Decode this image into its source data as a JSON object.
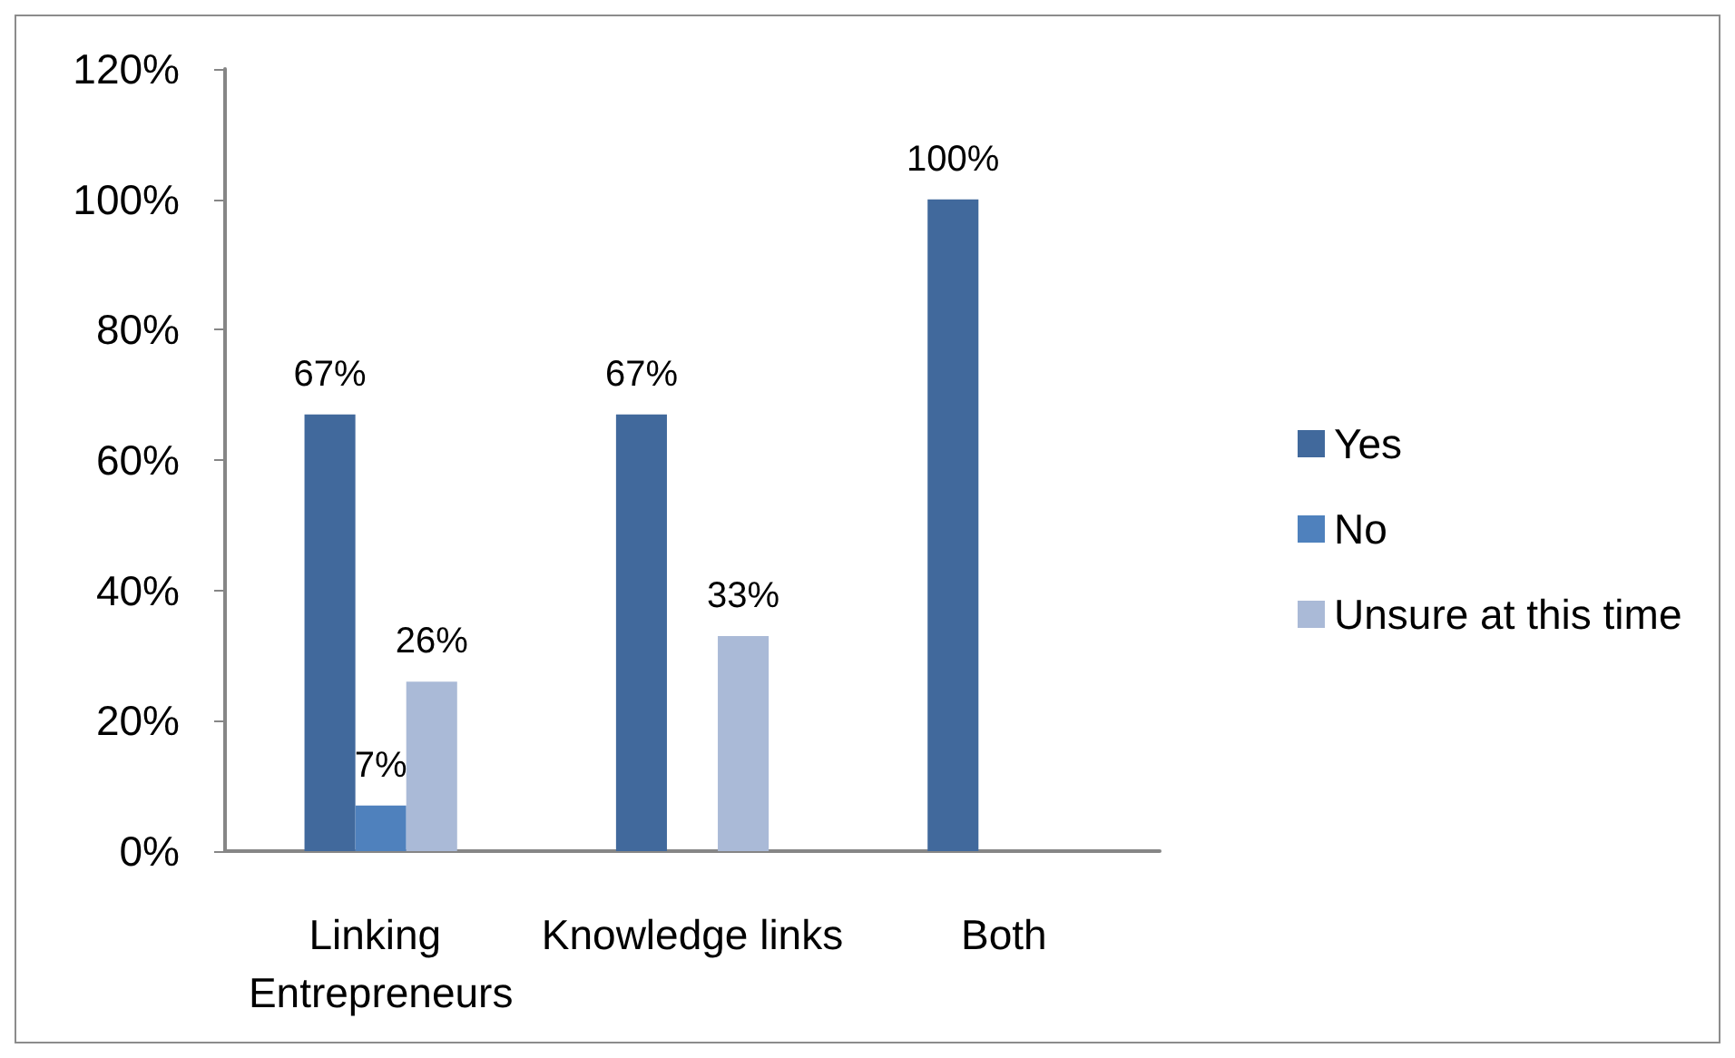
{
  "chart_data": {
    "type": "bar",
    "categories": [
      "Linking Entrepreneurs",
      "Knowledge links",
      "Both"
    ],
    "series": [
      {
        "name": "Yes",
        "color": "#41699c",
        "values": [
          67,
          67,
          100
        ],
        "value_labels": [
          "67%",
          "67%",
          "100%"
        ]
      },
      {
        "name": "No",
        "color": "#4f81bd",
        "values": [
          7,
          null,
          null
        ],
        "value_labels": [
          "7%",
          null,
          null
        ]
      },
      {
        "name": "Unsure at this time",
        "color": "#aabad7",
        "values": [
          26,
          33,
          null
        ],
        "value_labels": [
          "26%",
          "33%",
          null
        ]
      }
    ],
    "ylim": [
      0,
      120
    ],
    "yticks": [
      {
        "value": 0,
        "label": "0%"
      },
      {
        "value": 20,
        "label": "20%"
      },
      {
        "value": 40,
        "label": "40%"
      },
      {
        "value": 60,
        "label": "60%"
      },
      {
        "value": 80,
        "label": "80%"
      },
      {
        "value": 100,
        "label": "100%"
      },
      {
        "value": 120,
        "label": "120%"
      }
    ],
    "grid": false,
    "legend": "right"
  }
}
